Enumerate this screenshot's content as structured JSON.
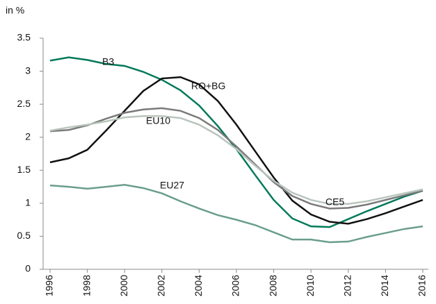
{
  "chart_data": {
    "type": "line",
    "y_label": "in %",
    "x": [
      1996,
      1997,
      1998,
      1999,
      2000,
      2001,
      2002,
      2003,
      2004,
      2005,
      2006,
      2007,
      2008,
      2009,
      2010,
      2011,
      2012,
      2013,
      2014,
      2015,
      2016
    ],
    "series": [
      {
        "name": "B3",
        "color": "#00795a",
        "values": [
          3.16,
          3.21,
          3.17,
          3.11,
          3.08,
          2.99,
          2.87,
          2.71,
          2.48,
          2.17,
          1.82,
          1.43,
          1.05,
          0.77,
          0.65,
          0.64,
          0.76,
          0.88,
          0.99,
          1.1,
          1.19
        ]
      },
      {
        "name": "RO+BG",
        "color": "#111111",
        "values": [
          1.62,
          1.68,
          1.81,
          2.1,
          2.4,
          2.7,
          2.89,
          2.91,
          2.8,
          2.55,
          2.19,
          1.79,
          1.39,
          1.04,
          0.83,
          0.72,
          0.69,
          0.76,
          0.85,
          0.95,
          1.05
        ]
      },
      {
        "name": "EU10",
        "color": "#7a7a7a",
        "values": [
          2.09,
          2.11,
          2.18,
          2.28,
          2.37,
          2.42,
          2.44,
          2.4,
          2.29,
          2.11,
          1.86,
          1.59,
          1.32,
          1.11,
          0.99,
          0.92,
          0.93,
          0.98,
          1.05,
          1.12,
          1.19
        ]
      },
      {
        "name": "CE5",
        "color": "#b9c5bd",
        "values": [
          2.1,
          2.15,
          2.19,
          2.24,
          2.3,
          2.32,
          2.32,
          2.29,
          2.19,
          2.03,
          1.82,
          1.57,
          1.34,
          1.16,
          1.05,
          0.99,
          0.99,
          1.03,
          1.09,
          1.15,
          1.21
        ]
      },
      {
        "name": "EU27",
        "color": "#6a9e8a",
        "values": [
          1.27,
          1.25,
          1.22,
          1.25,
          1.28,
          1.23,
          1.15,
          1.03,
          0.92,
          0.82,
          0.75,
          0.67,
          0.56,
          0.45,
          0.45,
          0.41,
          0.42,
          0.49,
          0.55,
          0.61,
          0.65
        ]
      }
    ],
    "xlim": [
      1996,
      2016
    ],
    "xticks": [
      1996,
      1998,
      2000,
      2002,
      2004,
      2006,
      2008,
      2010,
      2012,
      2014,
      2016
    ],
    "ylim": [
      0,
      3.5
    ],
    "yticks": [
      0,
      0.5,
      1,
      1.5,
      2,
      2.5,
      3,
      3.5
    ],
    "grid": false
  }
}
